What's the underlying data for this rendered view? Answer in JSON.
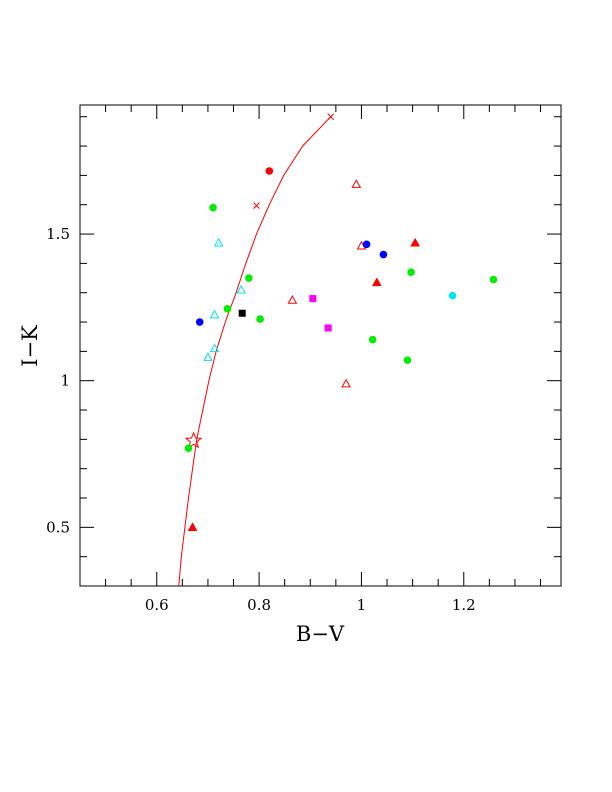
{
  "chart_data": {
    "type": "scatter",
    "xlabel": "B−V",
    "ylabel": "I−K",
    "xlim": [
      0.45,
      1.39
    ],
    "ylim": [
      0.3,
      1.94
    ],
    "x_ticks": [
      {
        "value": 0.6,
        "label": "0.6"
      },
      {
        "value": 0.8,
        "label": "0.8"
      },
      {
        "value": 1.0,
        "label": "1"
      },
      {
        "value": 1.2,
        "label": "1.2"
      }
    ],
    "y_ticks": [
      {
        "value": 0.5,
        "label": "0.5"
      },
      {
        "value": 1.0,
        "label": "1"
      },
      {
        "value": 1.5,
        "label": "1.5"
      }
    ],
    "x_minor_step": 0.05,
    "y_minor_step": 0.1,
    "grid": false,
    "legend": "none",
    "colors": {
      "red": "#ff0000",
      "green": "#00ee00",
      "blue": "#0000ff",
      "cyan": "#00e5ee",
      "magenta": "#ff00ff",
      "black": "#000000"
    },
    "curve": {
      "color": "#ff0000",
      "points": [
        [
          0.643,
          0.3
        ],
        [
          0.648,
          0.4
        ],
        [
          0.655,
          0.5
        ],
        [
          0.662,
          0.6
        ],
        [
          0.67,
          0.7
        ],
        [
          0.678,
          0.8
        ],
        [
          0.69,
          0.9
        ],
        [
          0.702,
          1.0
        ],
        [
          0.716,
          1.1
        ],
        [
          0.734,
          1.2
        ],
        [
          0.755,
          1.3
        ],
        [
          0.774,
          1.4
        ],
        [
          0.795,
          1.5
        ],
        [
          0.82,
          1.6
        ],
        [
          0.848,
          1.7
        ],
        [
          0.885,
          1.8
        ],
        [
          0.94,
          1.9
        ]
      ],
      "cross_markers": [
        [
          0.795,
          1.597
        ],
        [
          0.94,
          1.9
        ]
      ],
      "star_marker": [
        0.672,
        0.795
      ]
    },
    "points": [
      {
        "x": 0.82,
        "y": 1.715,
        "marker": "filled-circle",
        "color": "red"
      },
      {
        "x": 0.67,
        "y": 0.5,
        "marker": "filled-triangle",
        "color": "red"
      },
      {
        "x": 1.03,
        "y": 1.335,
        "marker": "filled-triangle",
        "color": "red"
      },
      {
        "x": 1.105,
        "y": 1.47,
        "marker": "filled-triangle",
        "color": "red"
      },
      {
        "x": 0.99,
        "y": 1.67,
        "marker": "open-triangle",
        "color": "red"
      },
      {
        "x": 1.0,
        "y": 1.46,
        "marker": "open-triangle",
        "color": "red"
      },
      {
        "x": 0.865,
        "y": 1.275,
        "marker": "open-triangle",
        "color": "red"
      },
      {
        "x": 0.97,
        "y": 0.99,
        "marker": "open-triangle",
        "color": "red"
      },
      {
        "x": 0.71,
        "y": 1.59,
        "marker": "filled-circle",
        "color": "green"
      },
      {
        "x": 0.78,
        "y": 1.35,
        "marker": "filled-circle",
        "color": "green"
      },
      {
        "x": 0.738,
        "y": 1.245,
        "marker": "filled-circle",
        "color": "green"
      },
      {
        "x": 0.802,
        "y": 1.21,
        "marker": "filled-circle",
        "color": "green"
      },
      {
        "x": 0.662,
        "y": 0.77,
        "marker": "filled-circle",
        "color": "green"
      },
      {
        "x": 1.022,
        "y": 1.14,
        "marker": "filled-circle",
        "color": "green"
      },
      {
        "x": 1.09,
        "y": 1.07,
        "marker": "filled-circle",
        "color": "green"
      },
      {
        "x": 1.097,
        "y": 1.37,
        "marker": "filled-circle",
        "color": "green"
      },
      {
        "x": 1.258,
        "y": 1.345,
        "marker": "filled-circle",
        "color": "green"
      },
      {
        "x": 0.684,
        "y": 1.2,
        "marker": "filled-circle",
        "color": "blue"
      },
      {
        "x": 1.01,
        "y": 1.465,
        "marker": "filled-circle",
        "color": "blue"
      },
      {
        "x": 1.043,
        "y": 1.43,
        "marker": "filled-circle",
        "color": "blue"
      },
      {
        "x": 1.178,
        "y": 1.29,
        "marker": "filled-circle",
        "color": "cyan"
      },
      {
        "x": 0.721,
        "y": 1.47,
        "marker": "open-triangle",
        "color": "cyan"
      },
      {
        "x": 0.765,
        "y": 1.31,
        "marker": "open-triangle",
        "color": "cyan"
      },
      {
        "x": 0.713,
        "y": 1.225,
        "marker": "open-triangle",
        "color": "cyan"
      },
      {
        "x": 0.713,
        "y": 1.11,
        "marker": "open-triangle",
        "color": "cyan"
      },
      {
        "x": 0.7,
        "y": 1.08,
        "marker": "open-triangle",
        "color": "cyan"
      },
      {
        "x": 0.905,
        "y": 1.28,
        "marker": "filled-square",
        "color": "magenta"
      },
      {
        "x": 0.935,
        "y": 1.18,
        "marker": "filled-square",
        "color": "magenta"
      },
      {
        "x": 0.767,
        "y": 1.23,
        "marker": "filled-square",
        "color": "black"
      }
    ]
  }
}
